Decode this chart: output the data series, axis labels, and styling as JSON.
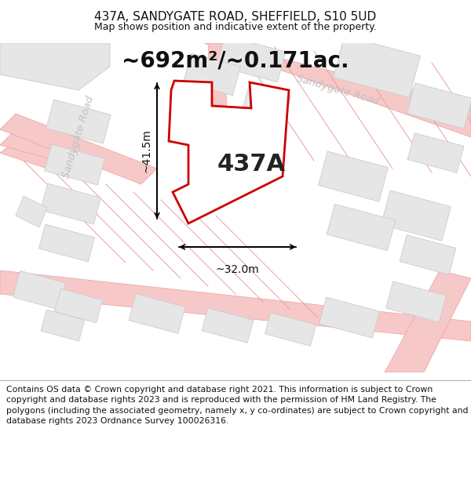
{
  "title_line1": "437A, SANDYGATE ROAD, SHEFFIELD, S10 5UD",
  "title_line2": "Map shows position and indicative extent of the property.",
  "area_text": "~692m²/~0.171ac.",
  "label_437A": "437A",
  "dim_height": "~41.5m",
  "dim_width": "~32.0m",
  "footer_text": "Contains OS data © Crown copyright and database right 2021. This information is subject to Crown copyright and database rights 2023 and is reproduced with the permission of HM Land Registry. The polygons (including the associated geometry, namely x, y co-ordinates) are subject to Crown copyright and database rights 2023 Ordnance Survey 100026316.",
  "bg_color": "#ffffff",
  "map_bg": "#ffffff",
  "road_color": "#f7c8c8",
  "road_edge_color": "#e8a0a0",
  "building_fill": "#e6e6e6",
  "building_edge": "#cccccc",
  "highlight_color": "#cc0000",
  "highlight_fill": "#ffffff",
  "road_label_color": "#c0c0c0",
  "road_label1": "Sandygate Road",
  "road_label2": "Sandygate Road",
  "title_fontsize": 11,
  "subtitle_fontsize": 9,
  "area_fontsize": 20,
  "label_fontsize": 22,
  "footer_fontsize": 7.8,
  "dim_fontsize": 10
}
